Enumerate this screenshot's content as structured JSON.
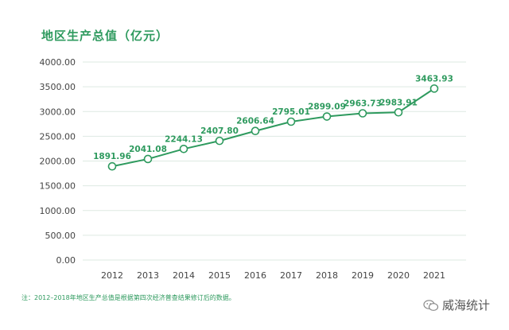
{
  "chart_title": "地区生产总值（亿元）",
  "note": "注：2012–2018年地区生产总值是根据第四次经济普查结果修订后的数据。",
  "watermark": "威海统计",
  "colors": {
    "accent": "#2e9a5e",
    "grid": "#dde9e2",
    "axis_text": "#444444"
  },
  "chart_data": {
    "type": "line",
    "title": "地区生产总值（亿元）",
    "xlabel": "",
    "ylabel": "",
    "categories": [
      "2012",
      "2013",
      "2014",
      "2015",
      "2016",
      "2017",
      "2018",
      "2019",
      "2020",
      "2021"
    ],
    "values": [
      1891.96,
      2041.08,
      2244.13,
      2407.8,
      2606.64,
      2795.01,
      2899.09,
      2963.73,
      2983.91,
      3463.93
    ],
    "ylim": [
      0,
      4000
    ],
    "yticks": [
      "0.00",
      "500.00",
      "1000.00",
      "1500.00",
      "2000.00",
      "2500.00",
      "3000.00",
      "3500.00",
      "4000.00"
    ],
    "value_labels": [
      "1891.96",
      "2041.08",
      "2244.13",
      "2407.80",
      "2606.64",
      "2795.01",
      "2899.09",
      "2963.73",
      "2983.91",
      "3463.93"
    ],
    "grid": true,
    "legend": "none"
  }
}
